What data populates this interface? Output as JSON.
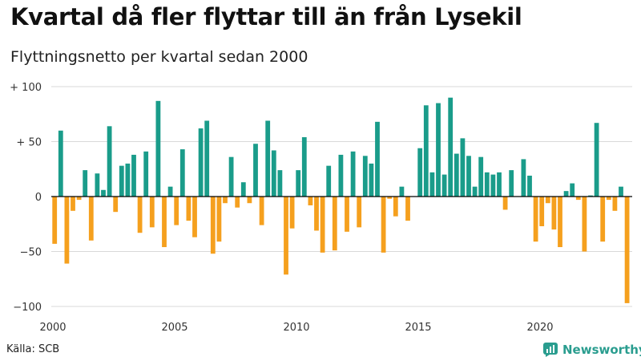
{
  "header": {
    "title": "Kvartal då fler flyttar till än från Lysekil",
    "subtitle": "Flyttningsnetto per kvartal sedan 2000"
  },
  "footer": {
    "source": "Källa: SCB",
    "brand": "Newsworthy"
  },
  "colors": {
    "positive": "#1a9c8a",
    "negative": "#f5a01e",
    "grid": "#d9d9d9",
    "zero_line": "#000000"
  },
  "chart_data": {
    "type": "bar",
    "title": "Kvartal då fler flyttar till än från Lysekil",
    "subtitle": "Flyttningsnetto per kvartal sedan 2000",
    "xlabel": "",
    "ylabel": "",
    "ylim": [
      -100,
      100
    ],
    "y_ticks": [
      {
        "value": 100,
        "label": "+ 100"
      },
      {
        "value": 50,
        "label": "+  50"
      },
      {
        "value": 0,
        "label": "0"
      },
      {
        "value": -50,
        "label": "−50"
      },
      {
        "value": -100,
        "label": "−100"
      }
    ],
    "x_ticks": [
      {
        "year": 2000,
        "label": "2000"
      },
      {
        "year": 2005,
        "label": "2005"
      },
      {
        "year": 2010,
        "label": "2010"
      },
      {
        "year": 2015,
        "label": "2015"
      },
      {
        "year": 2020,
        "label": "2020"
      }
    ],
    "grid": true,
    "start_year": 2000,
    "start_quarter": 1,
    "values": [
      -43,
      60,
      -61,
      -13,
      -3,
      24,
      -40,
      21,
      6,
      64,
      -14,
      28,
      30,
      38,
      -33,
      41,
      -28,
      87,
      -46,
      9,
      -26,
      43,
      -22,
      -37,
      62,
      69,
      -52,
      -41,
      -6,
      36,
      -10,
      13,
      -6,
      48,
      -26,
      69,
      42,
      24,
      -71,
      -29,
      24,
      54,
      -8,
      -31,
      -51,
      28,
      -49,
      38,
      -32,
      41,
      -28,
      37,
      30,
      68,
      -51,
      -2,
      -18,
      9,
      -22,
      0,
      44,
      83,
      22,
      85,
      20,
      90,
      39,
      53,
      37,
      9,
      36,
      22,
      20,
      22,
      -12,
      24,
      0,
      34,
      19,
      -41,
      -27,
      -6,
      -30,
      -46,
      5,
      12,
      -3,
      -50,
      1,
      67,
      -41,
      -3,
      -13,
      9,
      -97
    ]
  }
}
